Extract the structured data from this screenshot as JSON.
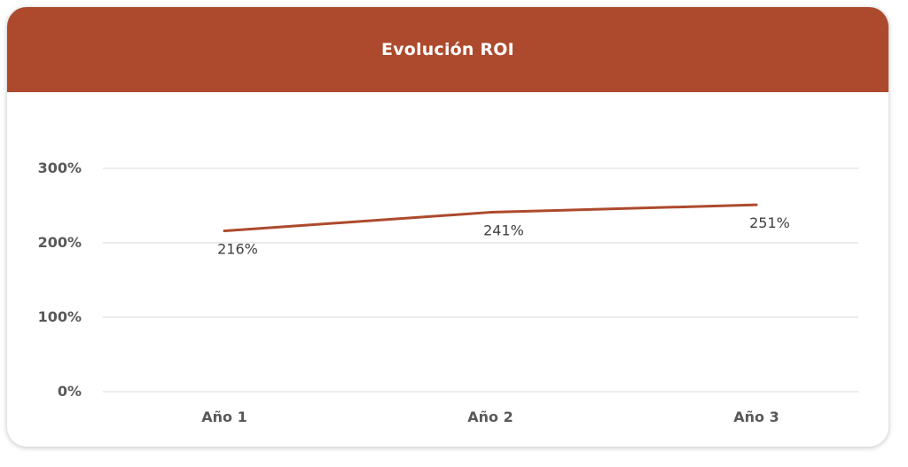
{
  "header": {
    "title": "Evolución ROI"
  },
  "colors": {
    "header": "#ad4a2d",
    "line": "#ad4a2d",
    "grid": "#d9d9d9"
  },
  "chart_data": {
    "type": "line",
    "title": "Evolución ROI",
    "xlabel": "",
    "ylabel": "",
    "categories": [
      "Año 1",
      "Año 2",
      "Año 3"
    ],
    "series": [
      {
        "values": [
          216,
          241,
          251
        ]
      }
    ],
    "data_labels": [
      "216%",
      "241%",
      "251%"
    ],
    "ylim": [
      0,
      300
    ],
    "yticks": [
      0,
      100,
      200,
      300
    ],
    "ytick_labels": [
      "0%",
      "100%",
      "200%",
      "300%"
    ],
    "grid": true,
    "legend": "none"
  }
}
